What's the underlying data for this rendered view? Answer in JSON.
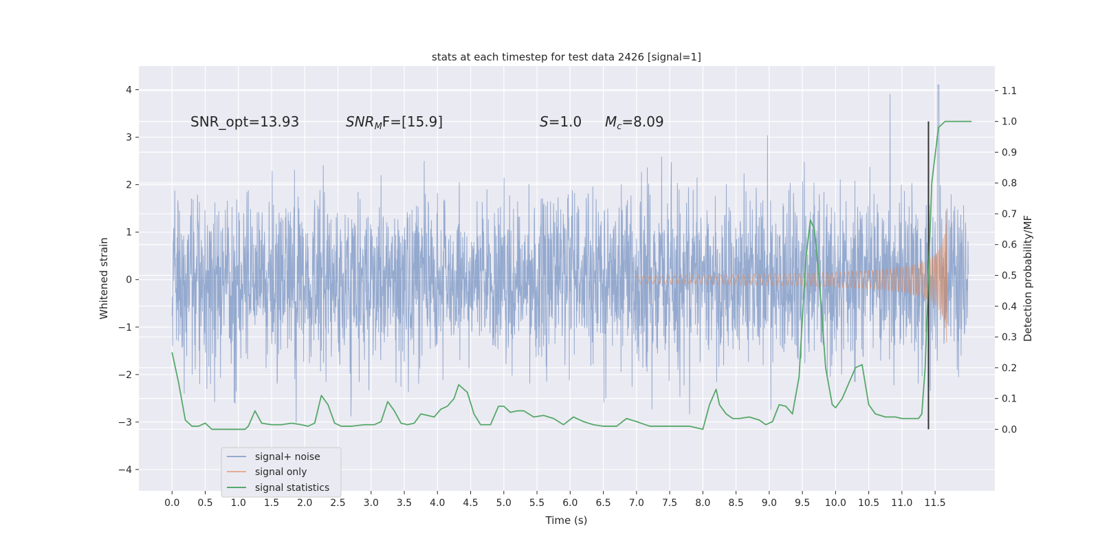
{
  "chart_data": {
    "type": "line",
    "title": "stats at each timestep for test data 2426 [signal=1]",
    "xlabel": "Time (s)",
    "ylabel": "Whitened strain",
    "ylabel_right": "Detection probability/MF",
    "xlim": [
      -0.5,
      12.4
    ],
    "ylim": [
      -4.45,
      4.5
    ],
    "ylim_right": [
      -0.2,
      1.18
    ],
    "grid": true,
    "legend_position": "lower-left",
    "x_ticks": [
      "0.0",
      "0.5",
      "1.0",
      "1.5",
      "2.0",
      "2.5",
      "3.0",
      "3.5",
      "4.0",
      "4.5",
      "5.0",
      "5.5",
      "6.0",
      "6.5",
      "7.0",
      "7.5",
      "8.0",
      "8.5",
      "9.0",
      "9.5",
      "10.0",
      "10.5",
      "11.0",
      "11.5"
    ],
    "y_ticks": [
      "4",
      "3",
      "2",
      "1",
      "0",
      "−1",
      "−2",
      "−3",
      "−4"
    ],
    "y_ticks_right": [
      "1.1",
      "1.0",
      "0.9",
      "0.8",
      "0.7",
      "0.6",
      "0.5",
      "0.4",
      "0.3",
      "0.2",
      "0.1",
      "0.0"
    ],
    "annotations": [
      "SNR_opt=13.93",
      "SNR",
      "M",
      "F=[15.9]",
      "S",
      "=1.0",
      "M",
      "c",
      "=8.09"
    ],
    "marker_line_x": 11.4,
    "colors": {
      "noise": "#4c72b0",
      "signal": "#dd8452",
      "stats": "#55a868",
      "plot_bg": "#eaeaf2",
      "marker": "#333333"
    },
    "series": [
      {
        "name": "signal+ noise",
        "kind": "strain",
        "sample_rate_hz": 240,
        "duration_s": 12.0,
        "envelope_typical": 1.3,
        "envelope_max": 4.1,
        "peak_at_s": 11.55
      },
      {
        "name": "signal only",
        "kind": "chirp",
        "start_s": 7.0,
        "end_s": 11.68,
        "final_amplitude": 1.7
      },
      {
        "name": "signal statistics",
        "x": [
          0.0,
          0.1,
          0.2,
          0.3,
          0.4,
          0.5,
          0.6,
          0.7,
          0.8,
          0.9,
          1.0,
          1.1,
          1.15,
          1.25,
          1.35,
          1.5,
          1.65,
          1.8,
          1.95,
          2.05,
          2.15,
          2.25,
          2.35,
          2.45,
          2.55,
          2.7,
          2.9,
          3.05,
          3.15,
          3.25,
          3.35,
          3.45,
          3.55,
          3.65,
          3.75,
          3.85,
          3.95,
          4.05,
          4.15,
          4.25,
          4.32,
          4.45,
          4.55,
          4.65,
          4.8,
          4.92,
          5.0,
          5.1,
          5.2,
          5.3,
          5.45,
          5.6,
          5.75,
          5.9,
          6.05,
          6.2,
          6.35,
          6.5,
          6.7,
          6.85,
          7.0,
          7.2,
          7.4,
          7.6,
          7.8,
          8.0,
          8.1,
          8.2,
          8.25,
          8.35,
          8.45,
          8.55,
          8.7,
          8.85,
          8.95,
          9.05,
          9.15,
          9.25,
          9.35,
          9.45,
          9.55,
          9.62,
          9.68,
          9.75,
          9.85,
          9.95,
          10.0,
          10.1,
          10.2,
          10.3,
          10.4,
          10.5,
          10.6,
          10.75,
          10.9,
          11.0,
          11.15,
          11.25,
          11.3,
          11.35,
          11.45,
          11.55,
          11.65,
          11.8,
          11.9,
          12.0,
          12.05
        ],
        "y": [
          0.25,
          0.15,
          0.03,
          0.01,
          0.01,
          0.02,
          0.0,
          0.0,
          0.0,
          0.0,
          0.0,
          0.0,
          0.01,
          0.06,
          0.02,
          0.015,
          0.015,
          0.02,
          0.015,
          0.01,
          0.02,
          0.11,
          0.08,
          0.02,
          0.01,
          0.01,
          0.015,
          0.015,
          0.025,
          0.09,
          0.06,
          0.02,
          0.015,
          0.02,
          0.05,
          0.045,
          0.04,
          0.065,
          0.075,
          0.1,
          0.145,
          0.12,
          0.05,
          0.015,
          0.015,
          0.075,
          0.075,
          0.055,
          0.06,
          0.06,
          0.04,
          0.045,
          0.035,
          0.015,
          0.04,
          0.025,
          0.015,
          0.01,
          0.01,
          0.035,
          0.025,
          0.01,
          0.01,
          0.01,
          0.01,
          0.0,
          0.08,
          0.13,
          0.08,
          0.05,
          0.035,
          0.035,
          0.04,
          0.03,
          0.015,
          0.025,
          0.08,
          0.075,
          0.05,
          0.17,
          0.55,
          0.68,
          0.65,
          0.5,
          0.2,
          0.08,
          0.07,
          0.1,
          0.15,
          0.2,
          0.21,
          0.08,
          0.05,
          0.04,
          0.04,
          0.035,
          0.035,
          0.035,
          0.05,
          0.2,
          0.8,
          0.98,
          1.0,
          1.0,
          1.0,
          1.0,
          1.0
        ]
      }
    ]
  }
}
